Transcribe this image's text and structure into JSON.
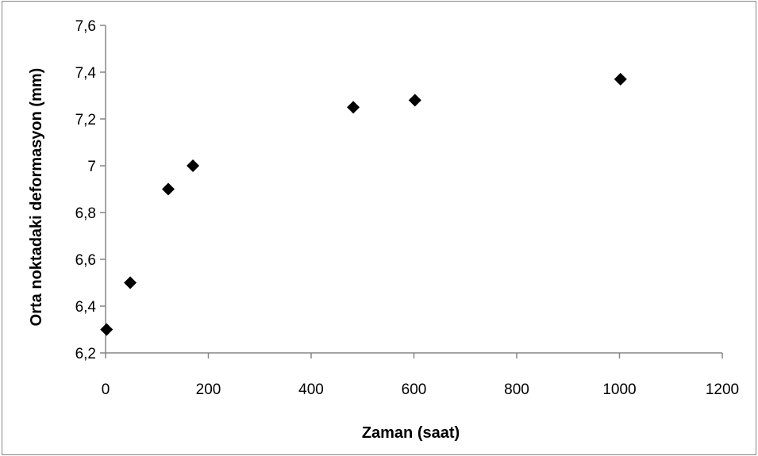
{
  "chart_data": {
    "type": "scatter",
    "title": "",
    "xlabel": "Zaman (saat)",
    "ylabel": "Orta  noktadaki  deformasyon (mm)",
    "xlim": [
      0,
      1200
    ],
    "ylim": [
      6.2,
      7.6
    ],
    "x_ticks": [
      0,
      200,
      400,
      600,
      800,
      1000,
      1200
    ],
    "y_ticks": [
      6.2,
      6.4,
      6.6,
      6.8,
      7.0,
      7.2,
      7.4,
      7.6
    ],
    "x_tick_labels": [
      "0",
      "200",
      "400",
      "600",
      "800",
      "1000",
      "1200"
    ],
    "y_tick_labels": [
      "6,2",
      "6,4",
      "6,6",
      "6,8",
      "7",
      "7,2",
      "7,4",
      "7,6"
    ],
    "grid": false,
    "legend": "none",
    "marker": "diamond",
    "marker_color": "#000000",
    "axis_color": "#868686",
    "series": [
      {
        "x": [
          2,
          48,
          122,
          170,
          482,
          602,
          1002
        ],
        "y": [
          6.3,
          6.5,
          6.9,
          7.0,
          7.25,
          7.28,
          7.37
        ]
      }
    ]
  }
}
